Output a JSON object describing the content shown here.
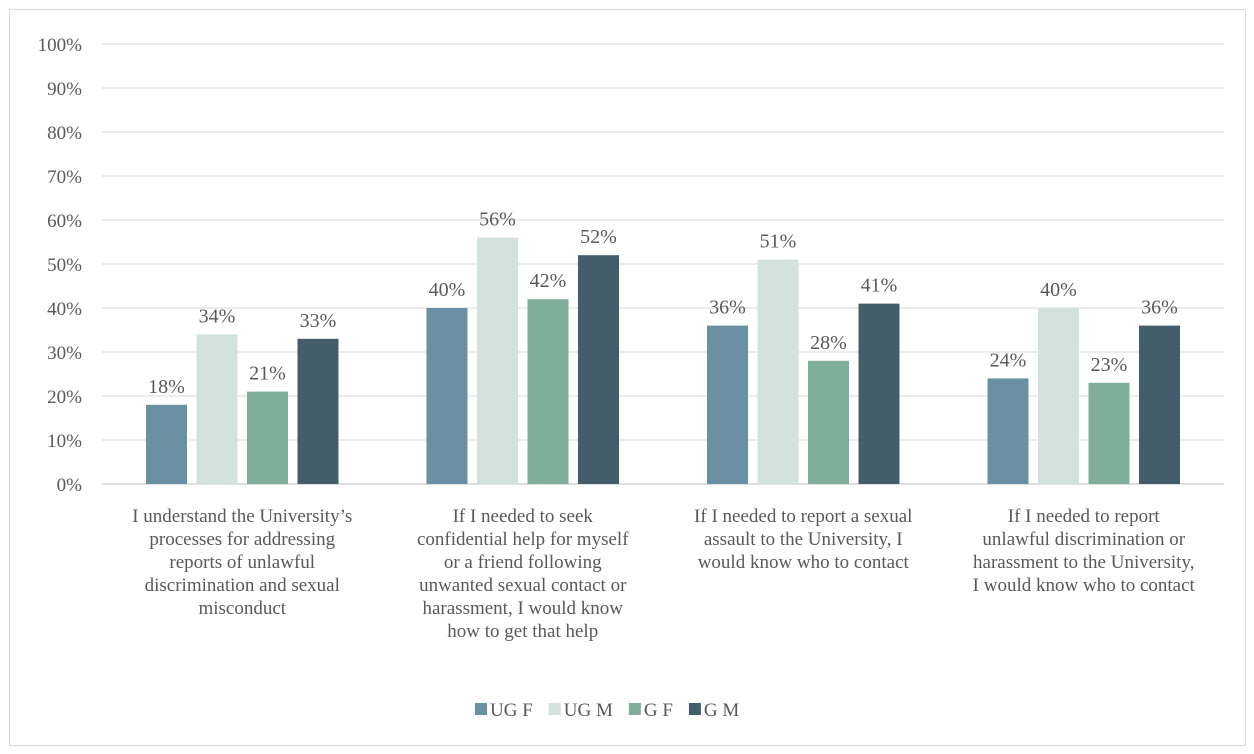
{
  "chart_data": {
    "type": "bar",
    "categories": [
      [
        "I understand the University’s",
        "processes for addressing",
        "reports of unlawful",
        "discrimination and sexual",
        "misconduct"
      ],
      [
        "If I needed to seek",
        "confidential help for myself",
        "or a friend following",
        "unwanted sexual contact or",
        "harassment, I would know",
        "how to get that help"
      ],
      [
        "If I needed to report a sexual",
        "assault to the University, I",
        "would know who to contact"
      ],
      [
        "If I needed to report",
        "unlawful discrimination or",
        "harassment to the University,",
        "I would know who to contact"
      ]
    ],
    "series": [
      {
        "name": "UG F",
        "color": "#6b8fa3",
        "values": [
          18,
          40,
          36,
          24
        ],
        "labels": [
          "18%",
          "40%",
          "36%",
          "24%"
        ]
      },
      {
        "name": "UG M",
        "color": "#d3e2dd",
        "values": [
          34,
          56,
          51,
          40
        ],
        "labels": [
          "34%",
          "56%",
          "51%",
          "40%"
        ]
      },
      {
        "name": "G F",
        "color": "#7fae9a",
        "values": [
          21,
          42,
          28,
          23
        ],
        "labels": [
          "21%",
          "42%",
          "28%",
          "23%"
        ]
      },
      {
        "name": "G M",
        "color": "#445d6b",
        "values": [
          33,
          52,
          41,
          36
        ],
        "labels": [
          "33%",
          "52%",
          "41%",
          "36%"
        ]
      }
    ],
    "y_ticks": [
      "0%",
      "10%",
      "20%",
      "30%",
      "40%",
      "50%",
      "60%",
      "70%",
      "80%",
      "90%",
      "100%"
    ],
    "ylim": [
      0,
      100
    ],
    "grid": true,
    "legend_position": "bottom",
    "title": "",
    "xlabel": "",
    "ylabel": ""
  }
}
